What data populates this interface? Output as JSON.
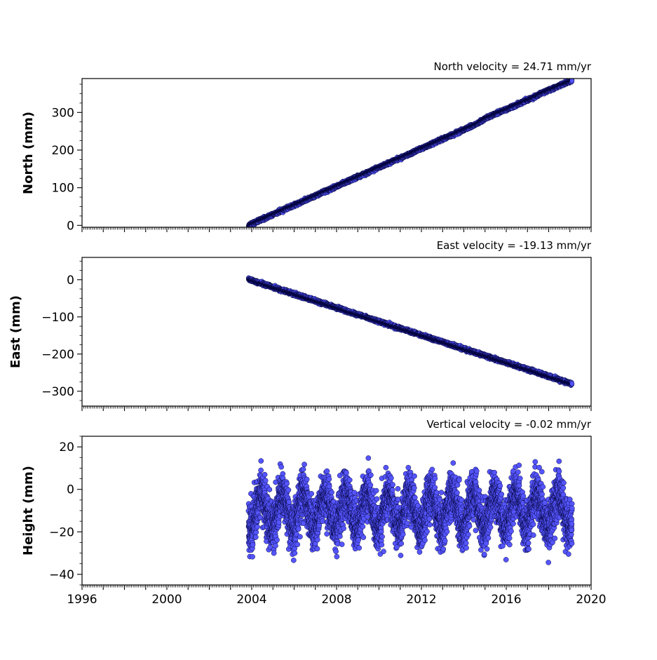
{
  "colors": {
    "marker_fill": "#5555ff",
    "marker_edge": "#000033",
    "axes": "#000000",
    "background": "#ffffff"
  },
  "chart_data": [
    {
      "type": "scatter",
      "title": "North velocity = 24.71 mm/yr",
      "xlabel": "",
      "ylabel": "North (mm)",
      "xlim": [
        1996,
        2020
      ],
      "ylim": [
        -5,
        390
      ],
      "yticks": [
        0,
        100,
        200,
        300
      ],
      "yticklabels": [
        "0",
        "100",
        "200",
        "300"
      ],
      "show_xticklabels": false,
      "x_start": 2003.85,
      "x_end": 2019.1,
      "trend": {
        "at_start": 0,
        "at_end": 382
      },
      "kinks": [
        {
          "x": 2014.6,
          "offset": 5
        },
        {
          "x": 2017.2,
          "offset": 3
        }
      ],
      "noise_sd": 2.0,
      "seed": 11
    },
    {
      "type": "scatter",
      "title": "East velocity = -19.13 mm/yr",
      "xlabel": "",
      "ylabel": "East (mm)",
      "xlim": [
        1996,
        2020
      ],
      "ylim": [
        -340,
        60
      ],
      "yticks": [
        0,
        -100,
        -200,
        -300
      ],
      "yticklabels": [
        "0",
        "−100",
        "−200",
        "−300"
      ],
      "show_xticklabels": false,
      "x_start": 2003.85,
      "x_end": 2019.1,
      "trend": {
        "at_start": 1,
        "at_end": -280
      },
      "kinks": [],
      "noise_sd": 2.0,
      "seed": 23
    },
    {
      "type": "scatter",
      "title": "Vertical velocity = -0.02 mm/yr",
      "xlabel": "",
      "ylabel": "Height (mm)",
      "xlim": [
        1996,
        2020
      ],
      "ylim": [
        -45,
        25
      ],
      "yticks": [
        20,
        0,
        -20,
        -40
      ],
      "yticklabels": [
        "20",
        "0",
        "−20",
        "−40"
      ],
      "show_xticklabels": true,
      "xticks": [
        1996,
        2000,
        2004,
        2008,
        2012,
        2016,
        2020
      ],
      "xticklabels": [
        "1996",
        "2000",
        "2004",
        "2008",
        "2012",
        "2016",
        "2020"
      ],
      "x_start": 2003.85,
      "x_end": 2019.1,
      "mean": -10,
      "seasonal_amplitude": 8,
      "noise_sd": 5.5,
      "range": [
        -43,
        21
      ],
      "seed": 37
    }
  ]
}
